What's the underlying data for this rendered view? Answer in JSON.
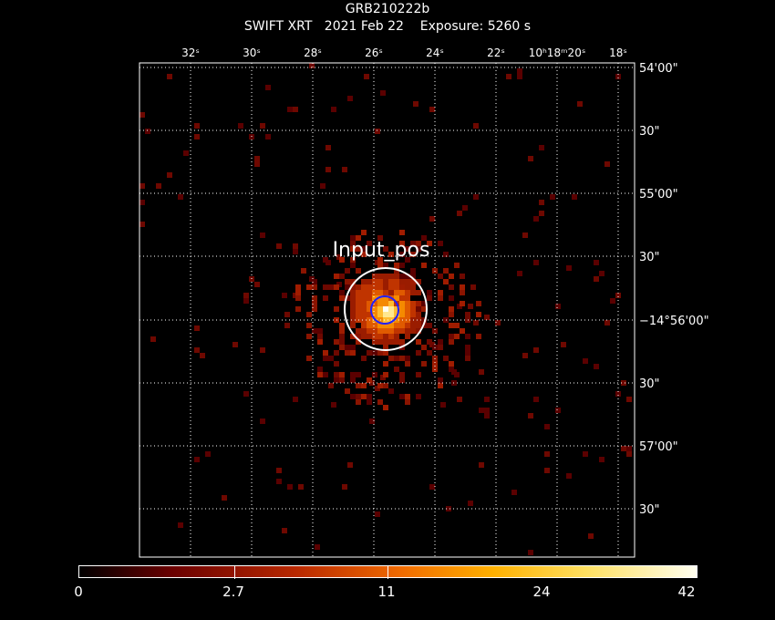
{
  "header": {
    "target": "GRB210222b",
    "telescope": "SWIFT XRT",
    "date": "2021 Feb 22",
    "exposure": "Exposure: 5260 s"
  },
  "image": {
    "region_label": "Input_pos",
    "ra_ticks": [
      "32ˢ",
      "30ˢ",
      "28ˢ",
      "26ˢ",
      "24ˢ",
      "22ˢ",
      "10ʰ18ᵐ20ˢ",
      "18ˢ"
    ],
    "dec_ticks": [
      "54'00\"",
      "30\"",
      "55'00\"",
      "30\"",
      "−14°56'00\"",
      "30\"",
      "57'00\"",
      "30\""
    ]
  },
  "colorbar": {
    "labels": [
      "0",
      "2.7",
      "11",
      "24",
      "42"
    ],
    "colors": {
      "low": "#6a0000",
      "mid": "#f06a00",
      "high": "#fffff0"
    }
  },
  "colors": {
    "source_circle": "#ffffff",
    "centroid_circle": "#2020ff",
    "grid": "#ffffff"
  }
}
